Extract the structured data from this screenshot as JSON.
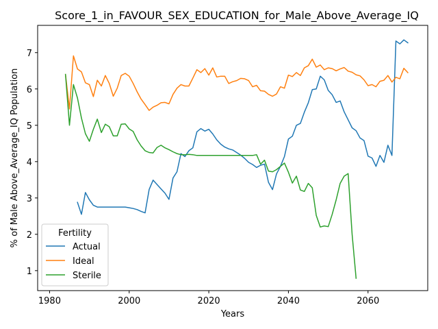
{
  "chart_data": {
    "type": "line",
    "title": "Score_1_in_FAVOUR_SEX_EDUCATION_for_Male_Above_Average_IQ",
    "xlabel": "Years",
    "ylabel": "% of Male Above_Average_IQ Population",
    "xlim": [
      1977,
      2075
    ],
    "ylim": [
      0.45,
      7.75
    ],
    "xticks": [
      1980,
      2000,
      2020,
      2040,
      2060
    ],
    "yticks": [
      1,
      2,
      3,
      4,
      5,
      6,
      7
    ],
    "grid": false,
    "legend": {
      "title": "Fertility",
      "position": "lower-left"
    },
    "series": [
      {
        "name": "Actual",
        "color": "#1f77b4",
        "points": [
          [
            1987,
            2.88
          ],
          [
            1988,
            2.55
          ],
          [
            1989,
            3.15
          ],
          [
            1990,
            2.95
          ],
          [
            1991,
            2.8
          ],
          [
            1992,
            2.75
          ],
          [
            1993,
            2.75
          ],
          [
            1994,
            2.75
          ],
          [
            1995,
            2.75
          ],
          [
            1996,
            2.75
          ],
          [
            1997,
            2.75
          ],
          [
            1998,
            2.75
          ],
          [
            1999,
            2.75
          ],
          [
            2000,
            2.73
          ],
          [
            2001,
            2.71
          ],
          [
            2002,
            2.68
          ],
          [
            2003,
            2.63
          ],
          [
            2004,
            2.59
          ],
          [
            2005,
            3.23
          ],
          [
            2006,
            3.49
          ],
          [
            2007,
            3.37
          ],
          [
            2008,
            3.25
          ],
          [
            2009,
            3.13
          ],
          [
            2010,
            2.96
          ],
          [
            2011,
            3.55
          ],
          [
            2012,
            3.72
          ],
          [
            2013,
            4.22
          ],
          [
            2014,
            4.14
          ],
          [
            2015,
            4.3
          ],
          [
            2016,
            4.38
          ],
          [
            2017,
            4.82
          ],
          [
            2018,
            4.91
          ],
          [
            2019,
            4.84
          ],
          [
            2020,
            4.89
          ],
          [
            2021,
            4.76
          ],
          [
            2022,
            4.6
          ],
          [
            2023,
            4.48
          ],
          [
            2024,
            4.4
          ],
          [
            2025,
            4.35
          ],
          [
            2026,
            4.32
          ],
          [
            2027,
            4.25
          ],
          [
            2028,
            4.18
          ],
          [
            2029,
            4.09
          ],
          [
            2030,
            3.98
          ],
          [
            2031,
            3.92
          ],
          [
            2032,
            3.84
          ],
          [
            2033,
            3.9
          ],
          [
            2034,
            3.93
          ],
          [
            2035,
            3.43
          ],
          [
            2036,
            3.23
          ],
          [
            2037,
            3.66
          ],
          [
            2038,
            3.87
          ],
          [
            2039,
            4.14
          ],
          [
            2040,
            4.62
          ],
          [
            2041,
            4.7
          ],
          [
            2042,
            5.0
          ],
          [
            2043,
            5.05
          ],
          [
            2044,
            5.36
          ],
          [
            2045,
            5.62
          ],
          [
            2046,
            5.98
          ],
          [
            2047,
            6.0
          ],
          [
            2048,
            6.35
          ],
          [
            2049,
            6.25
          ],
          [
            2050,
            5.96
          ],
          [
            2051,
            5.84
          ],
          [
            2052,
            5.63
          ],
          [
            2053,
            5.67
          ],
          [
            2054,
            5.37
          ],
          [
            2055,
            5.15
          ],
          [
            2056,
            4.93
          ],
          [
            2057,
            4.85
          ],
          [
            2058,
            4.65
          ],
          [
            2059,
            4.58
          ],
          [
            2060,
            4.15
          ],
          [
            2061,
            4.1
          ],
          [
            2062,
            3.87
          ],
          [
            2063,
            4.17
          ],
          [
            2064,
            3.98
          ],
          [
            2065,
            4.45
          ],
          [
            2066,
            4.17
          ],
          [
            2067,
            7.32
          ],
          [
            2068,
            7.24
          ],
          [
            2069,
            7.35
          ],
          [
            2070,
            7.27
          ]
        ]
      },
      {
        "name": "Ideal",
        "color": "#ff7f0e",
        "points": [
          [
            1984,
            6.4
          ],
          [
            1985,
            5.45
          ],
          [
            1986,
            6.91
          ],
          [
            1987,
            6.55
          ],
          [
            1988,
            6.47
          ],
          [
            1989,
            6.17
          ],
          [
            1990,
            6.12
          ],
          [
            1991,
            5.79
          ],
          [
            1992,
            6.24
          ],
          [
            1993,
            6.08
          ],
          [
            1994,
            6.37
          ],
          [
            1995,
            6.15
          ],
          [
            1996,
            5.8
          ],
          [
            1997,
            6.02
          ],
          [
            1998,
            6.37
          ],
          [
            1999,
            6.43
          ],
          [
            2000,
            6.35
          ],
          [
            2001,
            6.15
          ],
          [
            2002,
            5.92
          ],
          [
            2003,
            5.72
          ],
          [
            2004,
            5.57
          ],
          [
            2005,
            5.41
          ],
          [
            2006,
            5.5
          ],
          [
            2007,
            5.55
          ],
          [
            2008,
            5.62
          ],
          [
            2009,
            5.63
          ],
          [
            2010,
            5.59
          ],
          [
            2011,
            5.85
          ],
          [
            2012,
            6.02
          ],
          [
            2013,
            6.12
          ],
          [
            2014,
            6.08
          ],
          [
            2015,
            6.08
          ],
          [
            2016,
            6.3
          ],
          [
            2017,
            6.53
          ],
          [
            2018,
            6.45
          ],
          [
            2019,
            6.56
          ],
          [
            2020,
            6.38
          ],
          [
            2021,
            6.58
          ],
          [
            2022,
            6.33
          ],
          [
            2023,
            6.35
          ],
          [
            2024,
            6.35
          ],
          [
            2025,
            6.15
          ],
          [
            2026,
            6.2
          ],
          [
            2027,
            6.23
          ],
          [
            2028,
            6.29
          ],
          [
            2029,
            6.28
          ],
          [
            2030,
            6.23
          ],
          [
            2031,
            6.06
          ],
          [
            2032,
            6.1
          ],
          [
            2033,
            5.95
          ],
          [
            2034,
            5.94
          ],
          [
            2035,
            5.85
          ],
          [
            2036,
            5.8
          ],
          [
            2037,
            5.86
          ],
          [
            2038,
            6.06
          ],
          [
            2039,
            6.02
          ],
          [
            2040,
            6.38
          ],
          [
            2041,
            6.34
          ],
          [
            2042,
            6.45
          ],
          [
            2043,
            6.37
          ],
          [
            2044,
            6.58
          ],
          [
            2045,
            6.64
          ],
          [
            2046,
            6.82
          ],
          [
            2047,
            6.6
          ],
          [
            2048,
            6.66
          ],
          [
            2049,
            6.53
          ],
          [
            2050,
            6.58
          ],
          [
            2051,
            6.56
          ],
          [
            2052,
            6.5
          ],
          [
            2053,
            6.55
          ],
          [
            2054,
            6.59
          ],
          [
            2055,
            6.49
          ],
          [
            2056,
            6.46
          ],
          [
            2057,
            6.39
          ],
          [
            2058,
            6.36
          ],
          [
            2059,
            6.25
          ],
          [
            2060,
            6.09
          ],
          [
            2061,
            6.12
          ],
          [
            2062,
            6.06
          ],
          [
            2063,
            6.21
          ],
          [
            2064,
            6.24
          ],
          [
            2065,
            6.37
          ],
          [
            2066,
            6.19
          ],
          [
            2067,
            6.32
          ],
          [
            2068,
            6.28
          ],
          [
            2069,
            6.57
          ],
          [
            2070,
            6.45
          ]
        ]
      },
      {
        "name": "Sterile",
        "color": "#2ca02c",
        "points": [
          [
            1984,
            6.4
          ],
          [
            1985,
            5.0
          ],
          [
            1986,
            6.12
          ],
          [
            1987,
            5.75
          ],
          [
            1988,
            5.2
          ],
          [
            1989,
            4.77
          ],
          [
            1990,
            4.56
          ],
          [
            1991,
            4.89
          ],
          [
            1992,
            5.17
          ],
          [
            1993,
            4.8
          ],
          [
            1994,
            5.03
          ],
          [
            1995,
            4.96
          ],
          [
            1996,
            4.71
          ],
          [
            1997,
            4.71
          ],
          [
            1998,
            5.03
          ],
          [
            1999,
            5.04
          ],
          [
            2000,
            4.9
          ],
          [
            2001,
            4.83
          ],
          [
            2002,
            4.6
          ],
          [
            2003,
            4.43
          ],
          [
            2004,
            4.3
          ],
          [
            2005,
            4.25
          ],
          [
            2006,
            4.24
          ],
          [
            2007,
            4.39
          ],
          [
            2008,
            4.45
          ],
          [
            2009,
            4.38
          ],
          [
            2010,
            4.33
          ],
          [
            2011,
            4.27
          ],
          [
            2012,
            4.22
          ],
          [
            2013,
            4.19
          ],
          [
            2014,
            4.19
          ],
          [
            2015,
            4.2
          ],
          [
            2016,
            4.19
          ],
          [
            2017,
            4.17
          ],
          [
            2018,
            4.17
          ],
          [
            2019,
            4.17
          ],
          [
            2020,
            4.17
          ],
          [
            2021,
            4.17
          ],
          [
            2022,
            4.17
          ],
          [
            2023,
            4.17
          ],
          [
            2024,
            4.17
          ],
          [
            2025,
            4.17
          ],
          [
            2026,
            4.17
          ],
          [
            2027,
            4.17
          ],
          [
            2028,
            4.17
          ],
          [
            2029,
            4.17
          ],
          [
            2030,
            4.17
          ],
          [
            2031,
            4.17
          ],
          [
            2032,
            4.19
          ],
          [
            2033,
            3.93
          ],
          [
            2034,
            4.04
          ],
          [
            2035,
            3.74
          ],
          [
            2036,
            3.72
          ],
          [
            2037,
            3.78
          ],
          [
            2038,
            3.87
          ],
          [
            2039,
            3.96
          ],
          [
            2040,
            3.71
          ],
          [
            2041,
            3.41
          ],
          [
            2042,
            3.6
          ],
          [
            2043,
            3.22
          ],
          [
            2044,
            3.18
          ],
          [
            2045,
            3.4
          ],
          [
            2046,
            3.28
          ],
          [
            2047,
            2.52
          ],
          [
            2048,
            2.2
          ],
          [
            2049,
            2.23
          ],
          [
            2050,
            2.21
          ],
          [
            2051,
            2.55
          ],
          [
            2052,
            2.95
          ],
          [
            2053,
            3.4
          ],
          [
            2054,
            3.6
          ],
          [
            2055,
            3.67
          ],
          [
            2056,
            2.0
          ],
          [
            2057,
            0.79
          ]
        ]
      }
    ]
  }
}
